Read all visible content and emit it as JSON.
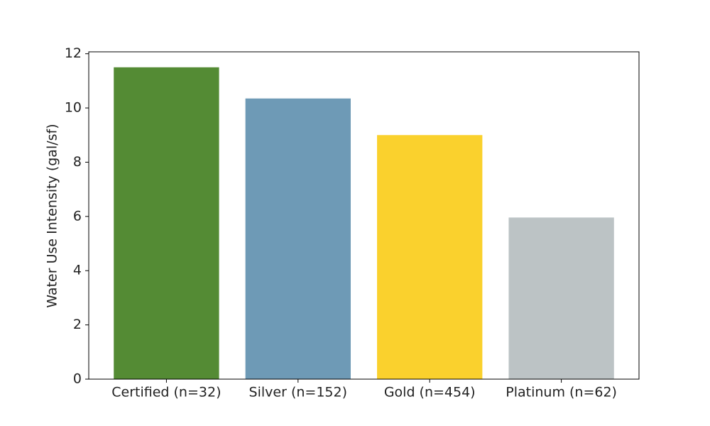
{
  "chart_data": {
    "type": "bar",
    "ylabel": "Water Use Intensity (gal/sf)",
    "categories": [
      "Certified (n=32)",
      "Silver (n=152)",
      "Gold (n=454)",
      "Platinum (n=62)"
    ],
    "values": [
      11.5,
      10.35,
      9.0,
      5.96
    ],
    "colors": [
      "#548b34",
      "#6e9ab6",
      "#fad12d",
      "#bcc3c5"
    ],
    "ylim": [
      0,
      12.07
    ],
    "yticks": [
      0,
      2,
      4,
      6,
      8,
      10,
      12
    ],
    "grid": false
  }
}
